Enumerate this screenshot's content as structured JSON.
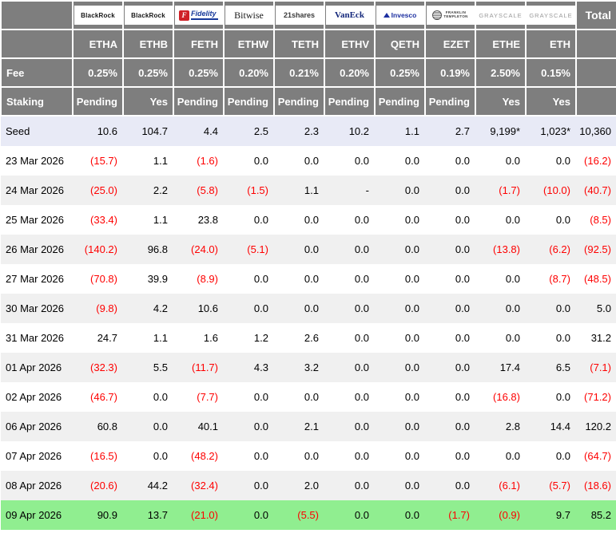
{
  "palette": {
    "header_bg": "#7e7e7e",
    "seed_row_bg": "#e8eaf6",
    "alt_row_bg": "#f0f0f0",
    "highlight_row_bg": "#90ee90",
    "negative_text": "#fe0000",
    "positive_text": "#000000"
  },
  "header": {
    "total_label": "Total",
    "fee_label": "Fee",
    "staking_label": "Staking",
    "logos": [
      {
        "brand": "blackrock",
        "text": "BlackRock"
      },
      {
        "brand": "blackrock",
        "text": "BlackRock"
      },
      {
        "brand": "fidelity",
        "icon": "F",
        "text": "Fidelity"
      },
      {
        "brand": "bitwise",
        "text": "Bitwise"
      },
      {
        "brand": "21shares",
        "text": "21shares"
      },
      {
        "brand": "vaneck",
        "text": "VanEck"
      },
      {
        "brand": "invesco",
        "text": "Invesco"
      },
      {
        "brand": "franklin",
        "lines": [
          "FRANKLIN",
          "TEMPLETON"
        ]
      },
      {
        "brand": "grayscale",
        "text": "GRAYSCALE"
      },
      {
        "brand": "grayscale",
        "text": "GRAYSCALE"
      }
    ],
    "tickers": [
      "ETHA",
      "ETHB",
      "FETH",
      "ETHW",
      "TETH",
      "ETHV",
      "QETH",
      "EZET",
      "ETHE",
      "ETH"
    ],
    "fees": [
      "0.25%",
      "0.25%",
      "0.25%",
      "0.20%",
      "0.21%",
      "0.20%",
      "0.25%",
      "0.19%",
      "2.50%",
      "0.15%"
    ],
    "staking": [
      "Pending",
      "Yes",
      "Pending",
      "Pending",
      "Pending",
      "Pending",
      "Pending",
      "Pending",
      "Yes",
      "Yes"
    ]
  },
  "rows": [
    {
      "label": "Seed",
      "style": "seed",
      "values": [
        "10.6",
        "104.7",
        "4.4",
        "2.5",
        "2.3",
        "10.2",
        "1.1",
        "2.7",
        "9,199*",
        "1,023*",
        "10,360"
      ]
    },
    {
      "label": "23 Mar 2026",
      "style": "w",
      "values": [
        "(15.7)",
        "1.1",
        "(1.6)",
        "0.0",
        "0.0",
        "0.0",
        "0.0",
        "0.0",
        "0.0",
        "0.0",
        "(16.2)"
      ]
    },
    {
      "label": "24 Mar 2026",
      "style": "g",
      "values": [
        "(25.0)",
        "2.2",
        "(5.8)",
        "(1.5)",
        "1.1",
        "-",
        "0.0",
        "0.0",
        "(1.7)",
        "(10.0)",
        "(40.7)"
      ]
    },
    {
      "label": "25 Mar 2026",
      "style": "w",
      "values": [
        "(33.4)",
        "1.1",
        "23.8",
        "0.0",
        "0.0",
        "0.0",
        "0.0",
        "0.0",
        "0.0",
        "0.0",
        "(8.5)"
      ]
    },
    {
      "label": "26 Mar 2026",
      "style": "g",
      "values": [
        "(140.2)",
        "96.8",
        "(24.0)",
        "(5.1)",
        "0.0",
        "0.0",
        "0.0",
        "0.0",
        "(13.8)",
        "(6.2)",
        "(92.5)"
      ]
    },
    {
      "label": "27 Mar 2026",
      "style": "w",
      "values": [
        "(70.8)",
        "39.9",
        "(8.9)",
        "0.0",
        "0.0",
        "0.0",
        "0.0",
        "0.0",
        "0.0",
        "(8.7)",
        "(48.5)"
      ]
    },
    {
      "label": "30 Mar 2026",
      "style": "g",
      "values": [
        "(9.8)",
        "4.2",
        "10.6",
        "0.0",
        "0.0",
        "0.0",
        "0.0",
        "0.0",
        "0.0",
        "0.0",
        "5.0"
      ]
    },
    {
      "label": "31 Mar 2026",
      "style": "w",
      "values": [
        "24.7",
        "1.1",
        "1.6",
        "1.2",
        "2.6",
        "0.0",
        "0.0",
        "0.0",
        "0.0",
        "0.0",
        "31.2"
      ]
    },
    {
      "label": "01 Apr 2026",
      "style": "g",
      "values": [
        "(32.3)",
        "5.5",
        "(11.7)",
        "4.3",
        "3.2",
        "0.0",
        "0.0",
        "0.0",
        "17.4",
        "6.5",
        "(7.1)"
      ]
    },
    {
      "label": "02 Apr 2026",
      "style": "w",
      "values": [
        "(46.7)",
        "0.0",
        "(7.7)",
        "0.0",
        "0.0",
        "0.0",
        "0.0",
        "0.0",
        "(16.8)",
        "0.0",
        "(71.2)"
      ]
    },
    {
      "label": "06 Apr 2026",
      "style": "g",
      "values": [
        "60.8",
        "0.0",
        "40.1",
        "0.0",
        "2.1",
        "0.0",
        "0.0",
        "0.0",
        "2.8",
        "14.4",
        "120.2"
      ]
    },
    {
      "label": "07 Apr 2026",
      "style": "w",
      "values": [
        "(16.5)",
        "0.0",
        "(48.2)",
        "0.0",
        "0.0",
        "0.0",
        "0.0",
        "0.0",
        "0.0",
        "0.0",
        "(64.7)"
      ]
    },
    {
      "label": "08 Apr 2026",
      "style": "g",
      "values": [
        "(20.6)",
        "44.2",
        "(32.4)",
        "0.0",
        "2.0",
        "0.0",
        "0.0",
        "0.0",
        "(6.1)",
        "(5.7)",
        "(18.6)"
      ]
    },
    {
      "label": "09 Apr 2026",
      "style": "green",
      "values": [
        "90.9",
        "13.7",
        "(21.0)",
        "0.0",
        "(5.5)",
        "0.0",
        "0.0",
        "(1.7)",
        "(0.9)",
        "9.7",
        "85.2"
      ]
    }
  ]
}
